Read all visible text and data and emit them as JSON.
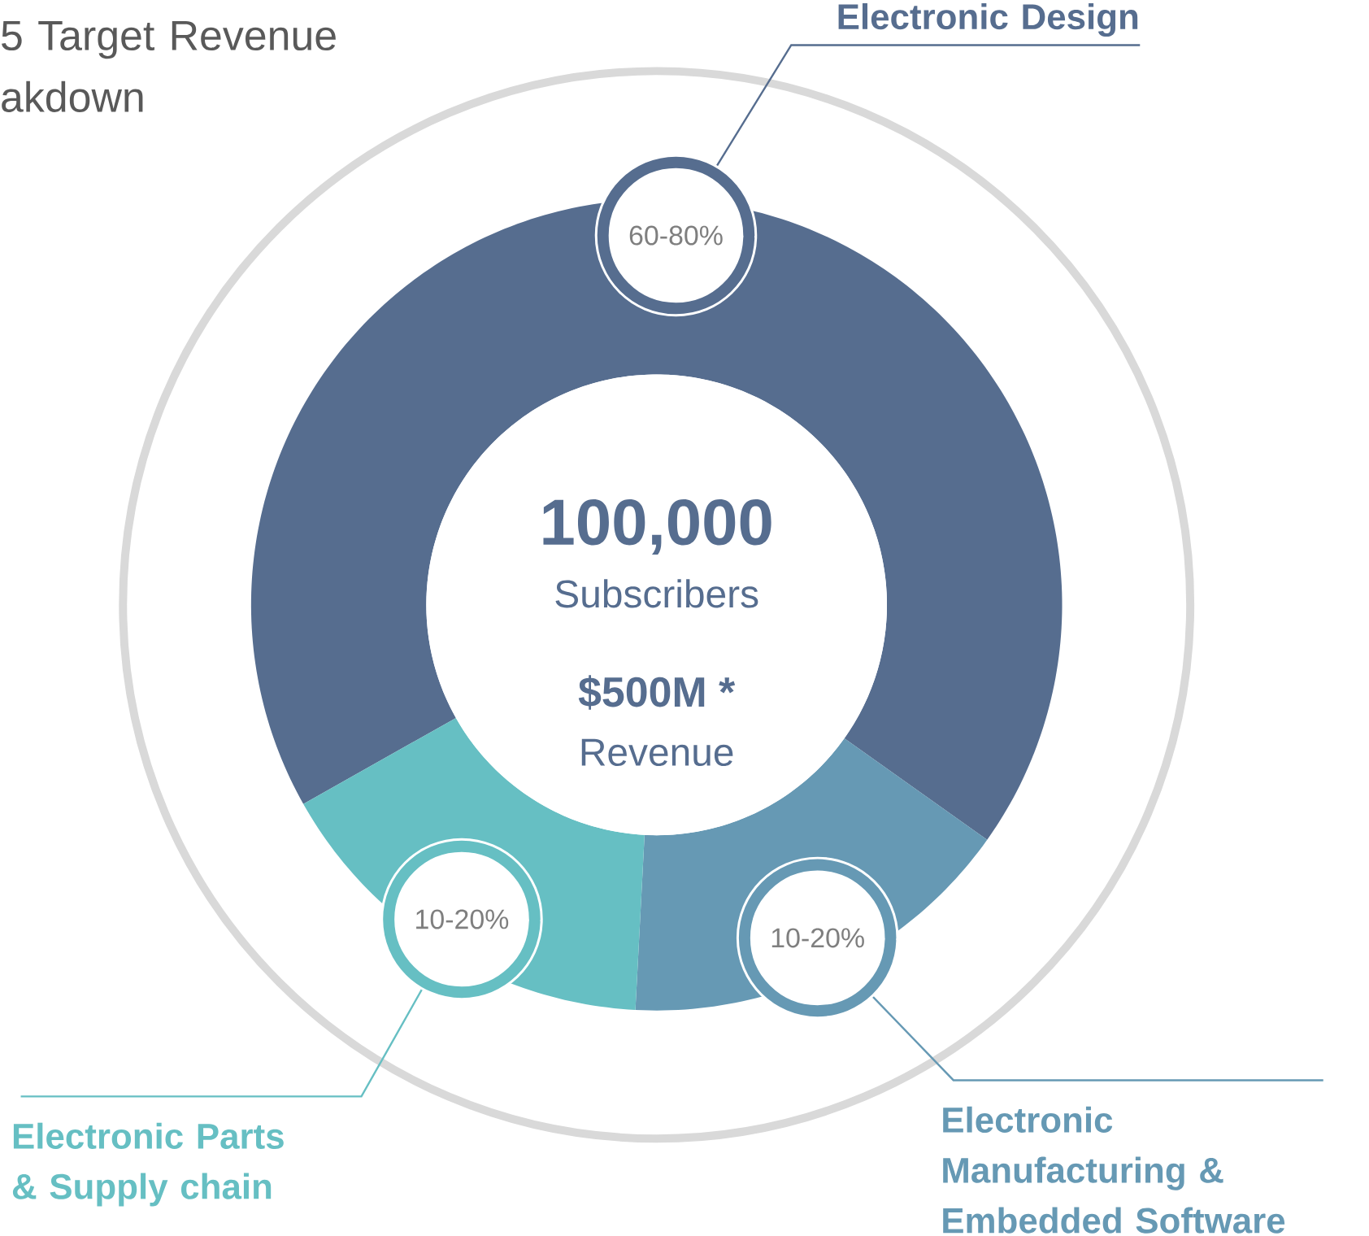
{
  "chart_data": {
    "type": "donut",
    "title": "5 Target Revenue akdown",
    "categories": [
      "Electronic Design",
      "Electronic Manufacturing & Embedded Software",
      "Electronic Parts & Supply chain"
    ],
    "values": [
      68,
      16,
      16
    ],
    "colors": [
      "#566d8f",
      "#6699b4",
      "#66bfc3"
    ],
    "annotations": [
      "100,000",
      "Subscribers",
      "$500M *",
      "Revenue",
      "60-80%",
      "10-20%",
      "10-20%"
    ]
  }
}
